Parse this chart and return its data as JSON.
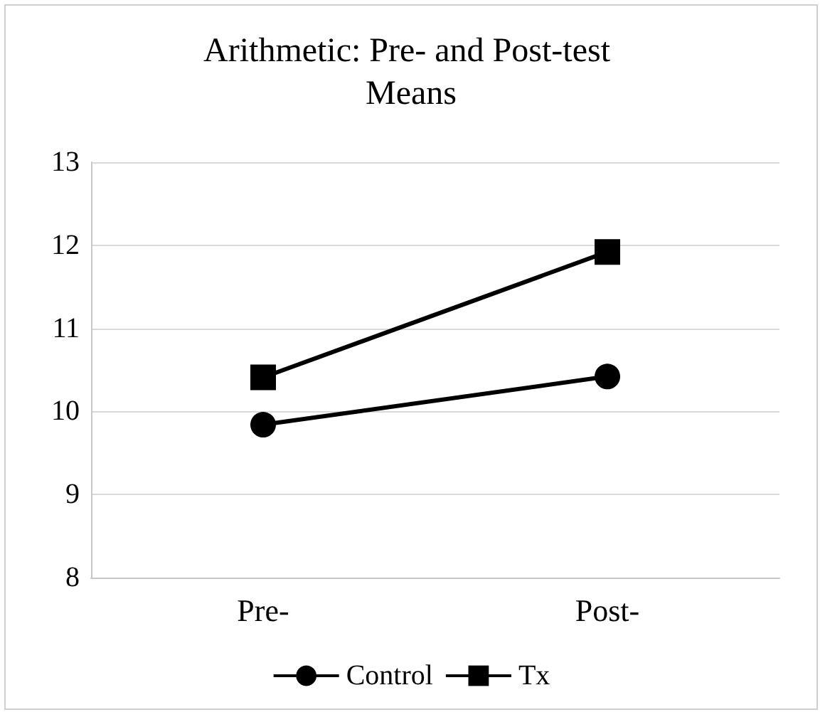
{
  "chart_data": {
    "type": "line",
    "title": "Arithmetic: Pre- and Post-test Means",
    "categories": [
      "Pre-",
      "Post-"
    ],
    "series": [
      {
        "name": "Control",
        "color": "#000000",
        "marker": "circle",
        "values": [
          9.84,
          10.42
        ]
      },
      {
        "name": "Tx",
        "color": "#000000",
        "marker": "square",
        "values": [
          10.41,
          11.92
        ]
      }
    ],
    "ylim": [
      8,
      13
    ],
    "yticks": [
      8,
      9,
      10,
      11,
      12,
      13
    ],
    "grid": "y",
    "legend": "bottom",
    "line_style": "solid"
  }
}
